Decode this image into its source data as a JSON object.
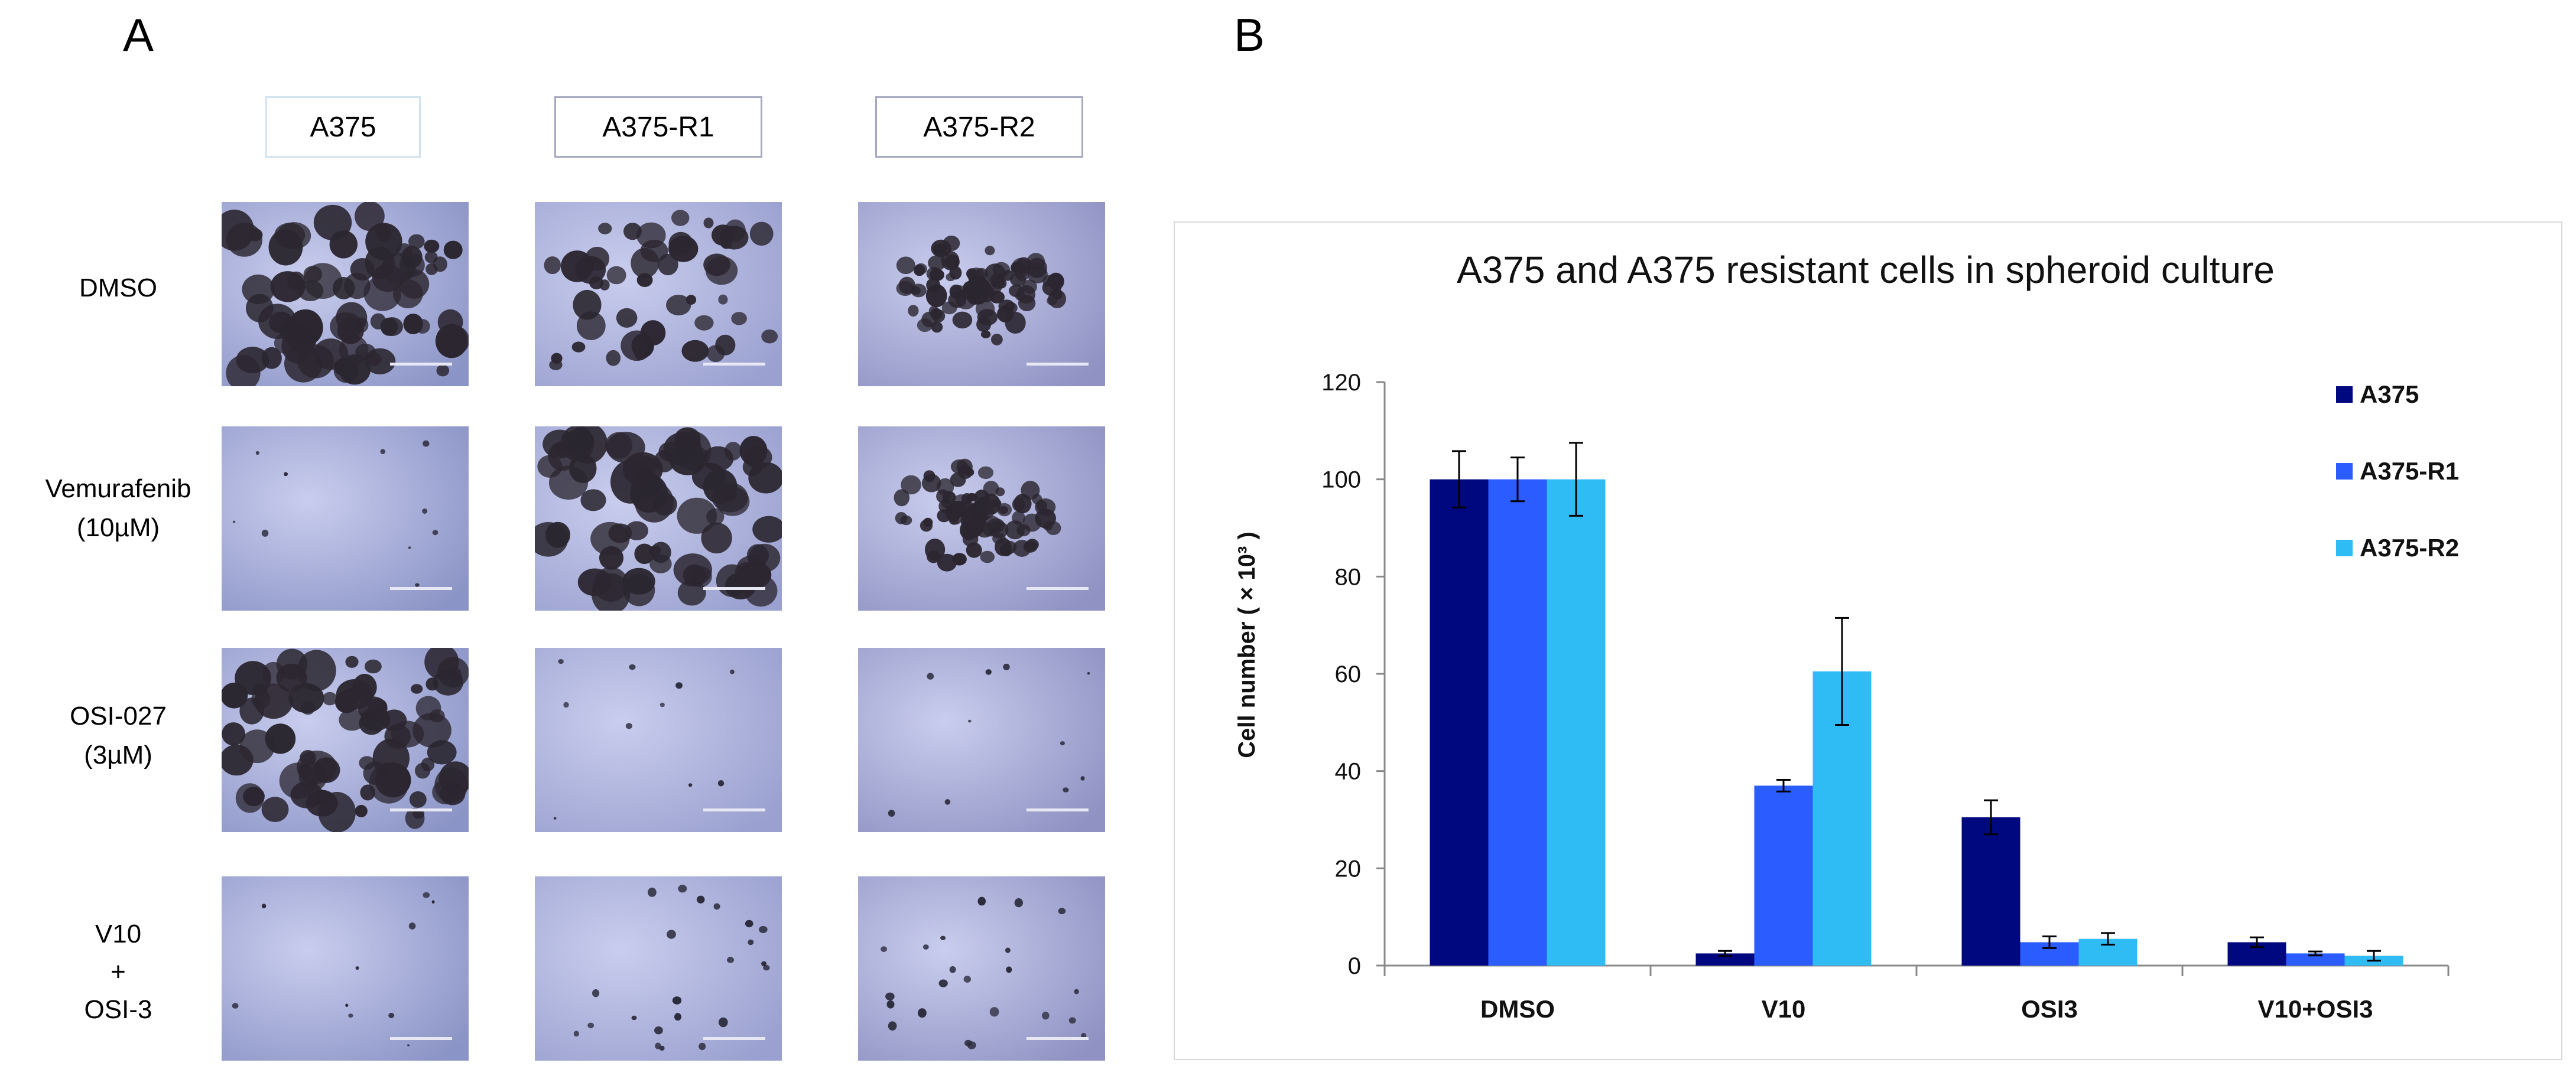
{
  "panel_a": {
    "letter": "A",
    "columns": [
      "A375",
      "A375-R1",
      "A375-R2"
    ],
    "rows": [
      {
        "lines": [
          "DMSO"
        ]
      },
      {
        "lines": [
          "Vemurafenib",
          "(10µM)"
        ]
      },
      {
        "lines": [
          "OSI-027",
          "(3µM)"
        ]
      },
      {
        "lines": [
          "V10",
          "+",
          "OSI-3"
        ]
      }
    ]
  },
  "panel_b": {
    "letter": "B"
  },
  "chart_data": {
    "type": "bar",
    "title": "A375 and A375 resistant cells in spheroid culture",
    "xlabel": "",
    "ylabel": "Cell number ( × 10³ )",
    "ylim": [
      0,
      120
    ],
    "yticks": [
      0,
      20,
      40,
      60,
      80,
      100,
      120
    ],
    "ytick_labels": [
      "0",
      "20",
      "40",
      "60",
      "80",
      "100",
      "120"
    ],
    "categories": [
      "DMSO",
      "V10",
      "OSI3",
      "V10+OSI3"
    ],
    "series": [
      {
        "name": "A375",
        "color": "#00087f",
        "values": [
          100,
          2.5,
          30.5,
          4.8
        ],
        "errors": [
          5.8,
          0.5,
          3.5,
          1.0
        ]
      },
      {
        "name": "A375-R1",
        "color": "#2b5cff",
        "values": [
          100,
          37,
          4.8,
          2.5
        ],
        "errors": [
          4.5,
          1.2,
          1.2,
          0.4
        ]
      },
      {
        "name": "A375-R2",
        "color": "#2fbcf4",
        "values": [
          100,
          60.5,
          5.5,
          2.0
        ],
        "errors": [
          7.5,
          11.0,
          1.2,
          1.0
        ]
      }
    ],
    "legend_position": "right",
    "grid": false
  }
}
